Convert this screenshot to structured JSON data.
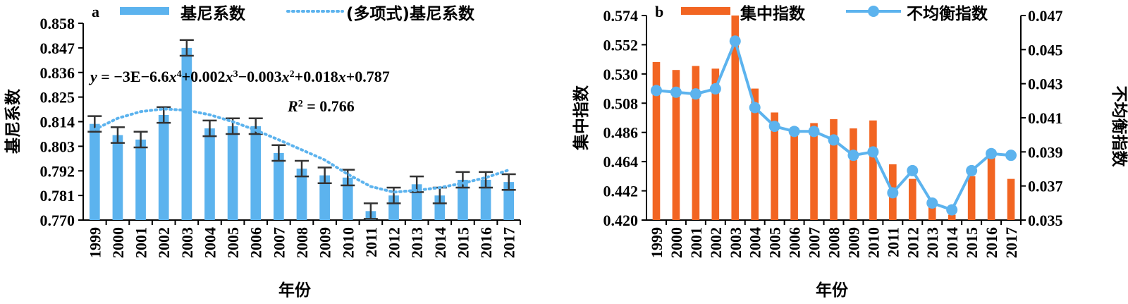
{
  "chart_data": [
    {
      "panel_label": "a",
      "type": "bar",
      "xlabel": "年份",
      "ylabel": "基尼系数",
      "ylim": [
        0.77,
        0.858
      ],
      "yticks": [
        "0.858",
        "0.847",
        "0.836",
        "0.825",
        "0.814",
        "0.803",
        "0.792",
        "0.781",
        "0.770"
      ],
      "categories": [
        "1999",
        "2000",
        "2001",
        "2002",
        "2003",
        "2004",
        "2005",
        "2006",
        "2007",
        "2008",
        "2009",
        "2010",
        "2011",
        "2012",
        "2013",
        "2014",
        "2015",
        "2016",
        "2017"
      ],
      "series": [
        {
          "name": "基尼系数",
          "kind": "bar",
          "color": "#5cb3ee",
          "values": [
            0.813,
            0.808,
            0.806,
            0.817,
            0.847,
            0.811,
            0.812,
            0.812,
            0.8,
            0.793,
            0.79,
            0.789,
            0.774,
            0.781,
            0.786,
            0.781,
            0.788,
            0.788,
            0.787
          ],
          "error": 0.0035
        },
        {
          "name": "(多项式)基尼系数",
          "kind": "trendline",
          "color": "#5cb3ee"
        }
      ],
      "trend_fit_points": [
        0.8105,
        0.8155,
        0.8185,
        0.8197,
        0.8191,
        0.8171,
        0.814,
        0.8102,
        0.8059,
        0.8014,
        0.7969,
        0.7905,
        0.785,
        0.7825,
        0.7833,
        0.7845,
        0.7865,
        0.789,
        0.7924
      ],
      "equation_parts": {
        "y": "y",
        "lhs": " = −3E−6.6",
        "x": "x",
        "t1": "+0.002",
        "t2": "−0.003",
        "t3": "+0.018",
        "t4": "+0.787",
        "sup4": "4",
        "sup3": "3",
        "sup2": "2",
        "R": "R",
        "r_eq": " = 0.766"
      },
      "legend_position": "top"
    },
    {
      "panel_label": "b",
      "type": "bar+line",
      "xlabel": "年份",
      "ylabel": "集中指数",
      "ylabel_right": "不均衡指数",
      "ylim": [
        0.42,
        0.574
      ],
      "yticks": [
        "0.574",
        "0.552",
        "0.530",
        "0.508",
        "0.486",
        "0.464",
        "0.442",
        "0.420"
      ],
      "ylim_right": [
        0.035,
        0.047
      ],
      "yticks_right": [
        "0.047",
        "0.045",
        "0.043",
        "0.041",
        "0.039",
        "0.037",
        "0.035"
      ],
      "categories": [
        "1999",
        "2000",
        "2001",
        "2002",
        "2003",
        "2004",
        "2005",
        "2006",
        "2007",
        "2008",
        "2009",
        "2010",
        "2011",
        "2012",
        "2013",
        "2014",
        "2015",
        "2016",
        "2017"
      ],
      "series": [
        {
          "name": "集中指数",
          "kind": "bar",
          "axis": "left",
          "color": "#f26522",
          "values": [
            0.539,
            0.533,
            0.536,
            0.534,
            0.574,
            0.519,
            0.501,
            0.49,
            0.493,
            0.496,
            0.489,
            0.495,
            0.462,
            0.451,
            0.43,
            0.424,
            0.453,
            0.468,
            0.451
          ]
        },
        {
          "name": "不均衡指数",
          "kind": "line",
          "axis": "right",
          "color": "#5cb3ee",
          "values": [
            0.0426,
            0.0425,
            0.0424,
            0.0427,
            0.0455,
            0.0416,
            0.0405,
            0.0402,
            0.0402,
            0.0397,
            0.0388,
            0.039,
            0.0366,
            0.0379,
            0.036,
            0.0356,
            0.0379,
            0.0389,
            0.0388
          ]
        }
      ],
      "legend_position": "top"
    }
  ]
}
